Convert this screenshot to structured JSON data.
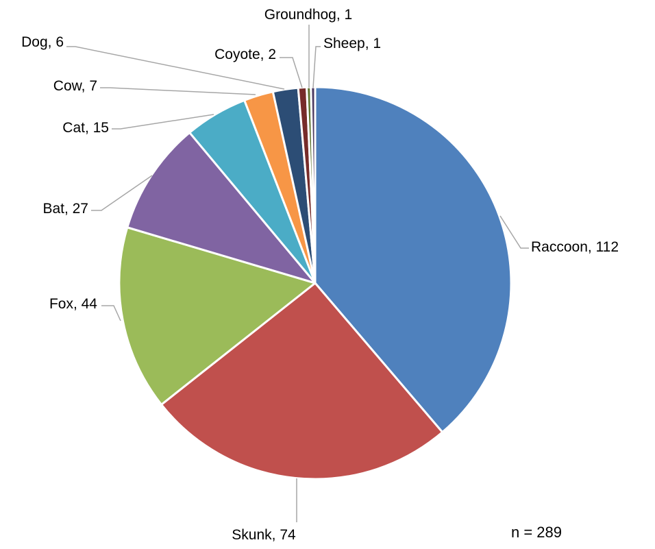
{
  "chart_data": {
    "type": "pie",
    "start": "12 o'clock",
    "direction": "clockwise",
    "slices": [
      {
        "name": "Raccoon",
        "value": 112,
        "label": "Raccoon, 112",
        "color": "#4f81bd"
      },
      {
        "name": "Skunk",
        "value": 74,
        "label": "Skunk, 74",
        "color": "#c0504d"
      },
      {
        "name": "Fox",
        "value": 44,
        "label": "Fox, 44",
        "color": "#9bbb59"
      },
      {
        "name": "Bat",
        "value": 27,
        "label": "Bat, 27",
        "color": "#8064a2"
      },
      {
        "name": "Cat",
        "value": 15,
        "label": "Cat, 15",
        "color": "#4bacc6"
      },
      {
        "name": "Cow",
        "value": 7,
        "label": "Cow, 7",
        "color": "#f79646"
      },
      {
        "name": "Dog",
        "value": 6,
        "label": "Dog, 6",
        "color": "#2c4d75"
      },
      {
        "name": "Coyote",
        "value": 2,
        "label": "Coyote, 2",
        "color": "#772c2a"
      },
      {
        "name": "Groundhog",
        "value": 1,
        "label": "Groundhog, 1",
        "color": "#5f7530"
      },
      {
        "name": "Sheep",
        "value": 1,
        "label": "Sheep, 1",
        "color": "#4d3b62"
      }
    ],
    "note": "n = 289",
    "labels": "outside with leader lines"
  }
}
